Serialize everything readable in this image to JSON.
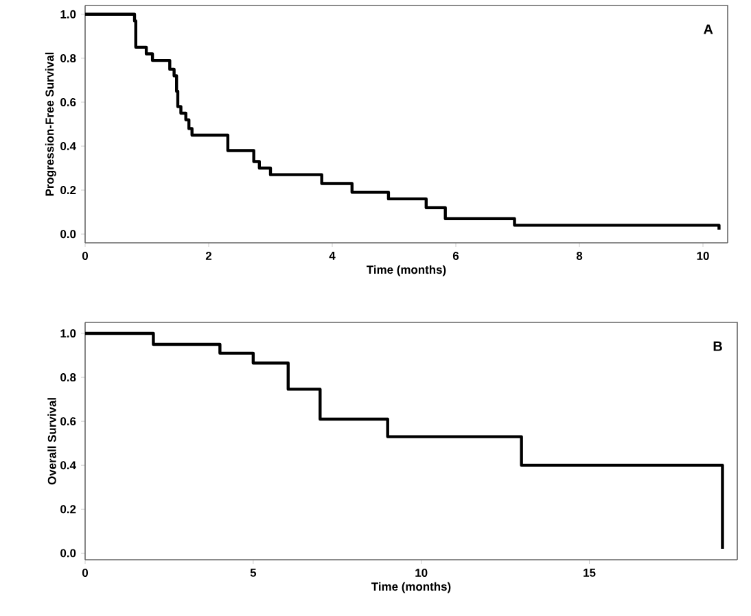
{
  "chart_data": [
    {
      "type": "step",
      "xlabel": "Time (months)",
      "ylabel": "Progression-Free Survival",
      "annotations": [
        "A"
      ],
      "color": "#000000",
      "x": [
        0,
        0.8,
        0.82,
        0.99,
        1.09,
        1.37,
        1.44,
        1.48,
        1.5,
        1.55,
        1.63,
        1.68,
        1.73,
        2.31,
        2.73,
        2.82,
        3.0,
        3.83,
        4.32,
        4.91,
        5.52,
        5.83,
        6.95,
        10.26
      ],
      "values": [
        1.0,
        0.97,
        0.85,
        0.82,
        0.79,
        0.75,
        0.72,
        0.65,
        0.58,
        0.55,
        0.52,
        0.48,
        0.45,
        0.38,
        0.33,
        0.3,
        0.27,
        0.23,
        0.19,
        0.16,
        0.12,
        0.07,
        0.04,
        0.02
      ],
      "xlim": [
        0,
        10.4
      ],
      "ylim": [
        -0.04,
        1.04
      ],
      "xticks": [
        0,
        2,
        4,
        6,
        8,
        10
      ],
      "yticks": [
        {
          "value": 0,
          "label": "0.0"
        },
        {
          "value": 0.2,
          "label": "0.2"
        },
        {
          "value": 0.4,
          "label": "0.4"
        },
        {
          "value": 0.6,
          "label": "0.6"
        },
        {
          "value": 0.8,
          "label": "0.8"
        },
        {
          "value": 1,
          "label": "1.0"
        }
      ]
    },
    {
      "type": "step",
      "xlabel": "Time (months)",
      "ylabel": "Overall Survival",
      "annotations": [
        "B"
      ],
      "color": "#000000",
      "x": [
        0,
        2.03,
        4.01,
        5.0,
        6.04,
        6.99,
        9.0,
        12.98,
        18.96
      ],
      "values": [
        1.0,
        0.95,
        0.91,
        0.865,
        0.746,
        0.61,
        0.53,
        0.4,
        0.02
      ],
      "xlim": [
        0,
        19.4
      ],
      "ylim": [
        -0.03,
        1.05
      ],
      "xticks": [
        0,
        5,
        10,
        15
      ],
      "yticks": [
        {
          "value": 0,
          "label": "0.0"
        },
        {
          "value": 0.2,
          "label": "0.2"
        },
        {
          "value": 0.4,
          "label": "0.4"
        },
        {
          "value": 0.6,
          "label": "0.6"
        },
        {
          "value": 0.8,
          "label": "0.8"
        },
        {
          "value": 1,
          "label": "1.0"
        }
      ]
    }
  ]
}
